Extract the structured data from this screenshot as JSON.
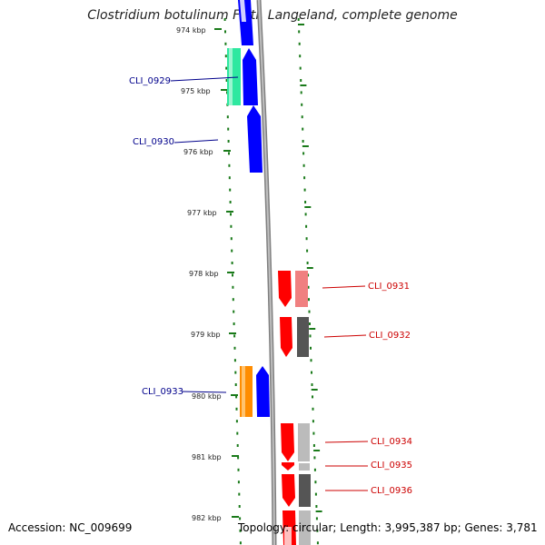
{
  "title": "Clostridium botulinum F str. Langeland, complete genome",
  "footer": {
    "accession": "Accession: NC_009699",
    "topology": "Topology: circular; Length: 3,995,387 bp; Genes: 3,781"
  },
  "ruler": {
    "labels": [
      "974 kbp",
      "975 kbp",
      "976 kbp",
      "977 kbp",
      "978 kbp",
      "979 kbp",
      "980 kbp",
      "981 kbp",
      "982 kbp"
    ]
  },
  "genes": [
    {
      "label": "CLI_0929",
      "strand": "forward"
    },
    {
      "label": "CLI_0930",
      "strand": "forward"
    },
    {
      "label": "CLI_0931",
      "strand": "reverse"
    },
    {
      "label": "CLI_0932",
      "strand": "reverse"
    },
    {
      "label": "CLI_0933",
      "strand": "forward"
    },
    {
      "label": "CLI_0934",
      "strand": "reverse"
    },
    {
      "label": "CLI_0935",
      "strand": "reverse"
    },
    {
      "label": "CLI_0936",
      "strand": "reverse"
    }
  ],
  "colors": {
    "forward_cds": "#0000ff",
    "reverse_cds": "#ff0000",
    "forward_label": "#00008b",
    "reverse_label": "#cc0000",
    "tick": "#1a7a1a",
    "backbone": "#808080",
    "cog_green": "#2ee8a0",
    "cog_orange": "#ff8c00",
    "cog_salmon": "#f08080",
    "cog_darkgray": "#555555",
    "cog_lightgray": "#bbbbbb"
  }
}
